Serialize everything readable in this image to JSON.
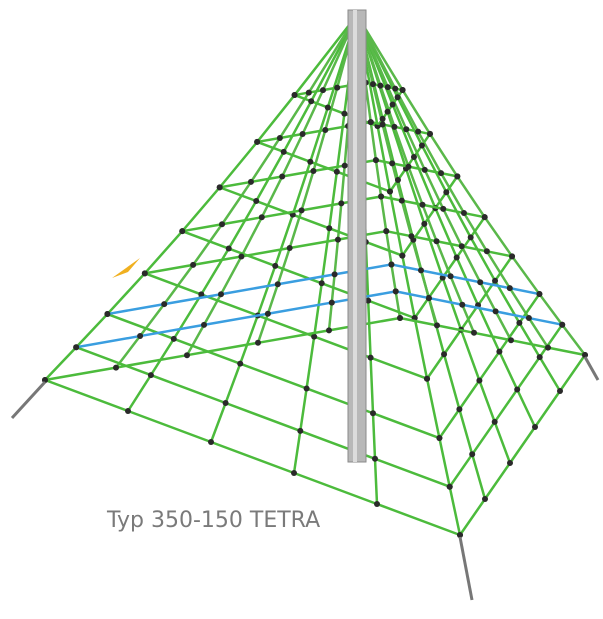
{
  "caption": "Typ 350-150 TETRA"
}
